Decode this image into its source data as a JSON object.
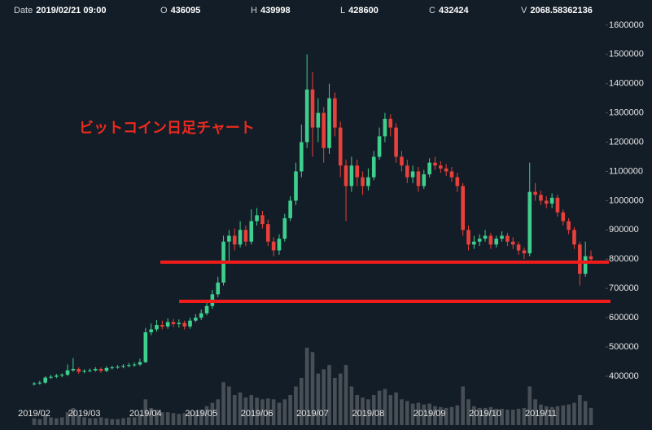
{
  "chart_data": {
    "type": "candlestick",
    "annotation": "ビットコイン日足チャート",
    "info": [
      {
        "label": "Date",
        "value": "2019/02/21 09:00"
      },
      {
        "label": "O",
        "value": 436095
      },
      {
        "label": "H",
        "value": 439998
      },
      {
        "label": "L",
        "value": 428600
      },
      {
        "label": "C",
        "value": 432424
      },
      {
        "label": "V",
        "value": 2068.58362136
      }
    ],
    "categories": [
      "2019/02",
      null,
      null,
      null,
      null,
      null,
      null,
      null,
      null,
      "2019/03",
      null,
      null,
      null,
      null,
      null,
      null,
      null,
      null,
      null,
      null,
      "2019/04",
      null,
      null,
      null,
      null,
      null,
      null,
      null,
      null,
      null,
      "2019/05",
      null,
      null,
      null,
      null,
      null,
      null,
      null,
      null,
      null,
      "2019/06",
      null,
      null,
      null,
      null,
      null,
      null,
      null,
      null,
      null,
      "2019/07",
      null,
      null,
      null,
      null,
      null,
      null,
      null,
      null,
      null,
      "2019/08",
      null,
      null,
      null,
      null,
      null,
      null,
      null,
      null,
      null,
      null,
      "2019/09",
      null,
      null,
      null,
      null,
      null,
      null,
      null,
      null,
      null,
      "2019/10",
      null,
      null,
      null,
      null,
      null,
      null,
      null,
      null,
      null,
      "2019/11",
      null,
      null,
      null,
      null,
      null,
      null,
      null,
      null,
      null
    ],
    "open": [
      372000,
      375000,
      378000,
      395000,
      398000,
      402000,
      405000,
      420000,
      425000,
      415000,
      418000,
      420000,
      425000,
      418000,
      428000,
      430000,
      432000,
      435000,
      438000,
      440000,
      448000,
      550000,
      560000,
      575000,
      570000,
      585000,
      578000,
      582000,
      570000,
      590000,
      600000,
      615000,
      640000,
      680000,
      720000,
      860000,
      880000,
      850000,
      900000,
      860000,
      930000,
      950000,
      920000,
      860000,
      830000,
      870000,
      940000,
      1000000,
      1100000,
      1200000,
      1380000,
      1250000,
      1300000,
      1180000,
      1350000,
      1250000,
      1120000,
      1050000,
      1120000,
      1080000,
      1050000,
      1080000,
      1150000,
      1220000,
      1280000,
      1250000,
      1150000,
      1120000,
      1080000,
      1100000,
      1050000,
      1090000,
      1130000,
      1120000,
      1110000,
      1100000,
      1080000,
      1050000,
      900000,
      850000,
      860000,
      870000,
      880000,
      850000,
      870000,
      880000,
      860000,
      850000,
      830000,
      820000,
      1030000,
      1020000,
      1000000,
      990000,
      1010000,
      960000,
      930000,
      900000,
      850000,
      750000,
      810000
    ],
    "high": [
      380000,
      384000,
      400000,
      405000,
      408000,
      410000,
      440000,
      462000,
      430000,
      424000,
      426000,
      431000,
      430000,
      434000,
      436000,
      438000,
      441000,
      445000,
      447000,
      460000,
      565000,
      580000,
      592000,
      590000,
      598000,
      596000,
      594000,
      590000,
      600000,
      612000,
      628000,
      655000,
      695000,
      740000,
      880000,
      900000,
      905000,
      930000,
      915000,
      970000,
      975000,
      965000,
      935000,
      875000,
      885000,
      955000,
      1015000,
      1130000,
      1260000,
      1500000,
      1440000,
      1350000,
      1320000,
      1400000,
      1370000,
      1270000,
      1140000,
      1150000,
      1140000,
      1100000,
      1110000,
      1170000,
      1250000,
      1300000,
      1295000,
      1265000,
      1170000,
      1140000,
      1120000,
      1115000,
      1105000,
      1145000,
      1150000,
      1135000,
      1125000,
      1115000,
      1095000,
      1060000,
      915000,
      880000,
      885000,
      900000,
      890000,
      880000,
      895000,
      890000,
      875000,
      860000,
      840000,
      1130000,
      1060000,
      1035000,
      1015000,
      1025000,
      1020000,
      970000,
      940000,
      910000,
      860000,
      860000,
      830000
    ],
    "low": [
      368000,
      371000,
      374000,
      390000,
      393000,
      396000,
      400000,
      415000,
      408000,
      410000,
      413000,
      415000,
      412000,
      414000,
      423000,
      425000,
      427000,
      430000,
      432000,
      435000,
      445000,
      540000,
      552000,
      560000,
      562000,
      568000,
      566000,
      560000,
      562000,
      585000,
      592000,
      608000,
      630000,
      670000,
      710000,
      790000,
      830000,
      840000,
      845000,
      850000,
      915000,
      905000,
      845000,
      810000,
      815000,
      860000,
      930000,
      985000,
      1080000,
      1180000,
      1150000,
      1200000,
      1130000,
      1160000,
      1220000,
      1080000,
      930000,
      1030000,
      1050000,
      1020000,
      1035000,
      1070000,
      1140000,
      1200000,
      1220000,
      1130000,
      1100000,
      1060000,
      1060000,
      1030000,
      1040000,
      1080000,
      1105000,
      1095000,
      1085000,
      1065000,
      1030000,
      880000,
      830000,
      835000,
      845000,
      860000,
      835000,
      840000,
      860000,
      845000,
      835000,
      815000,
      800000,
      810000,
      1000000,
      985000,
      975000,
      975000,
      945000,
      915000,
      885000,
      835000,
      710000,
      740000,
      790000
    ],
    "close": [
      375000,
      378000,
      395000,
      398000,
      402000,
      405000,
      420000,
      425000,
      415000,
      418000,
      420000,
      425000,
      418000,
      428000,
      430000,
      432000,
      435000,
      438000,
      440000,
      448000,
      550000,
      560000,
      575000,
      570000,
      585000,
      578000,
      582000,
      570000,
      590000,
      600000,
      615000,
      640000,
      680000,
      720000,
      860000,
      880000,
      850000,
      900000,
      860000,
      930000,
      950000,
      920000,
      860000,
      830000,
      870000,
      940000,
      1000000,
      1100000,
      1200000,
      1380000,
      1250000,
      1300000,
      1180000,
      1350000,
      1250000,
      1120000,
      1050000,
      1120000,
      1080000,
      1050000,
      1080000,
      1150000,
      1220000,
      1280000,
      1250000,
      1150000,
      1120000,
      1080000,
      1100000,
      1050000,
      1090000,
      1130000,
      1120000,
      1110000,
      1100000,
      1080000,
      1050000,
      900000,
      850000,
      860000,
      870000,
      880000,
      850000,
      870000,
      880000,
      860000,
      850000,
      830000,
      820000,
      1030000,
      1020000,
      1000000,
      990000,
      1010000,
      960000,
      930000,
      900000,
      850000,
      750000,
      810000,
      800000
    ],
    "volume": [
      800,
      700,
      1200,
      900,
      800,
      900,
      1500,
      2000,
      1100,
      900,
      800,
      800,
      900,
      800,
      700,
      700,
      800,
      900,
      900,
      1300,
      3000,
      2000,
      1800,
      1500,
      1500,
      1400,
      1300,
      1400,
      1500,
      1600,
      1800,
      2200,
      2600,
      3000,
      5000,
      4500,
      3500,
      3800,
      3200,
      3500,
      3200,
      3000,
      3100,
      3000,
      2600,
      3000,
      3500,
      4500,
      5500,
      9000,
      8500,
      6000,
      6500,
      7000,
      5500,
      6000,
      7000,
      4500,
      3500,
      3200,
      3000,
      3500,
      4000,
      4200,
      3500,
      3800,
      3000,
      2800,
      2500,
      2600,
      2400,
      2500,
      2200,
      2100,
      2000,
      2100,
      2300,
      4500,
      3000,
      2200,
      2000,
      2000,
      2100,
      1900,
      1900,
      1800,
      1800,
      1900,
      2000,
      4500,
      3000,
      2400,
      2200,
      2100,
      2200,
      2300,
      2400,
      2600,
      3500,
      2800,
      2000
    ],
    "up_color": "#3ecf8e",
    "down_color": "#e8403a",
    "volume_color": "#6b6f75",
    "line_color": "#f01c1c",
    "ylim": [
      216000,
      1686000
    ],
    "yticks": [
      400000,
      500000,
      600000,
      700000,
      800000,
      900000,
      1000000,
      1100000,
      1200000,
      1300000,
      1400000,
      1500000,
      1600000
    ],
    "hlines": [
      790000,
      656000
    ]
  }
}
